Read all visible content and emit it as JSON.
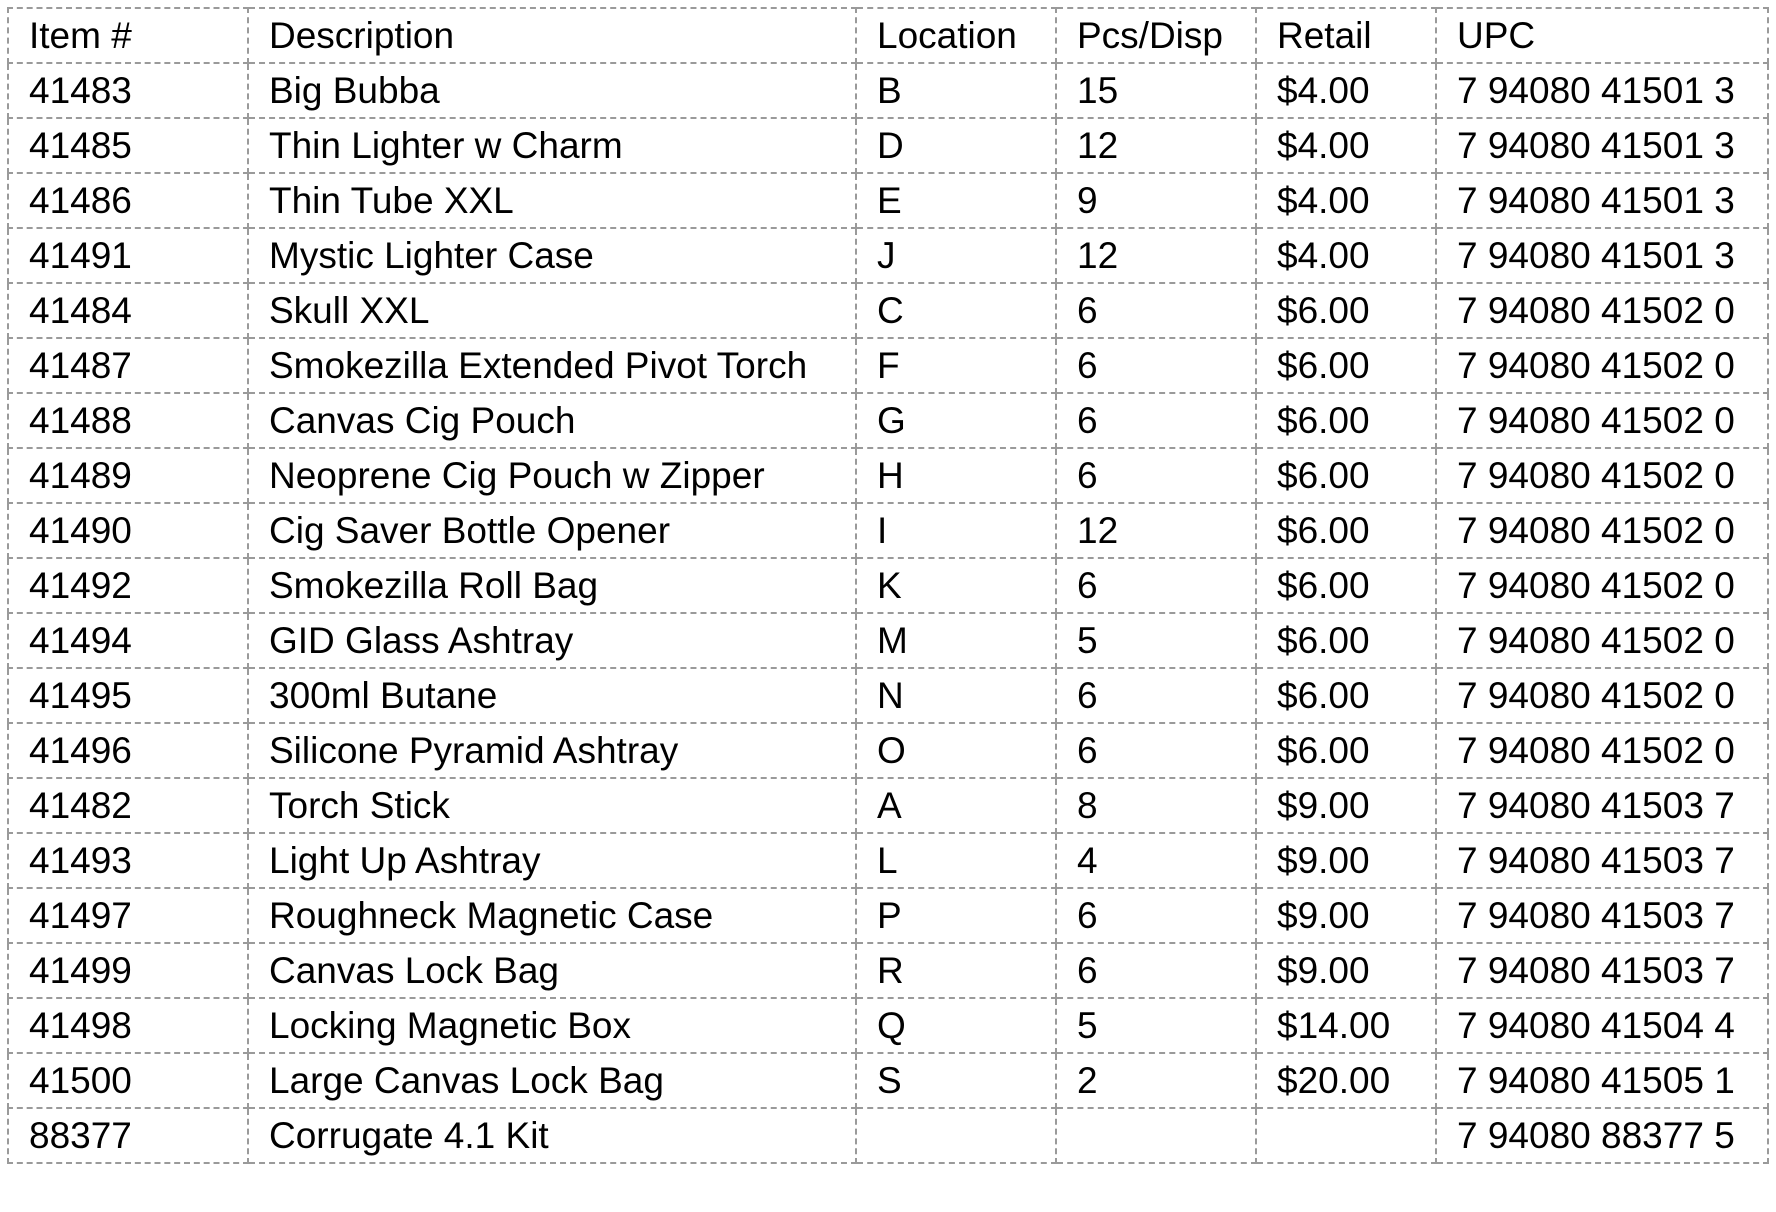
{
  "table": {
    "headers": [
      "Item #",
      "Description",
      "Location",
      "Pcs/Disp",
      "Retail",
      "UPC"
    ],
    "rows": [
      [
        "41483",
        "Big Bubba",
        "B",
        "15",
        "$4.00",
        "7 94080 41501 3"
      ],
      [
        "41485",
        "Thin Lighter w Charm",
        "D",
        "12",
        "$4.00",
        "7 94080 41501 3"
      ],
      [
        "41486",
        "Thin Tube XXL",
        "E",
        "9",
        "$4.00",
        "7 94080 41501 3"
      ],
      [
        "41491",
        "Mystic Lighter Case",
        "J",
        "12",
        "$4.00",
        "7 94080 41501 3"
      ],
      [
        "41484",
        "Skull XXL",
        "C",
        "6",
        "$6.00",
        "7 94080 41502 0"
      ],
      [
        "41487",
        "Smokezilla Extended Pivot Torch",
        "F",
        "6",
        "$6.00",
        "7 94080 41502 0"
      ],
      [
        "41488",
        "Canvas Cig Pouch",
        "G",
        "6",
        "$6.00",
        "7 94080 41502 0"
      ],
      [
        "41489",
        "Neoprene Cig Pouch w Zipper",
        "H",
        "6",
        "$6.00",
        "7 94080 41502 0"
      ],
      [
        "41490",
        "Cig Saver Bottle Opener",
        "I",
        "12",
        "$6.00",
        "7 94080 41502 0"
      ],
      [
        "41492",
        "Smokezilla Roll Bag",
        "K",
        "6",
        "$6.00",
        "7 94080 41502 0"
      ],
      [
        "41494",
        "GID Glass Ashtray",
        "M",
        "5",
        "$6.00",
        "7 94080 41502 0"
      ],
      [
        "41495",
        "300ml Butane",
        "N",
        "6",
        "$6.00",
        "7 94080 41502 0"
      ],
      [
        "41496",
        "Silicone Pyramid Ashtray",
        "O",
        "6",
        "$6.00",
        "7 94080 41502 0"
      ],
      [
        "41482",
        "Torch Stick",
        "A",
        "8",
        "$9.00",
        "7 94080 41503 7"
      ],
      [
        "41493",
        "Light Up Ashtray",
        "L",
        "4",
        "$9.00",
        "7 94080 41503 7"
      ],
      [
        "41497",
        "Roughneck Magnetic Case",
        "P",
        "6",
        "$9.00",
        "7 94080 41503 7"
      ],
      [
        "41499",
        "Canvas Lock Bag",
        "R",
        "6",
        "$9.00",
        "7 94080 41503 7"
      ],
      [
        "41498",
        "Locking Magnetic Box",
        "Q",
        "5",
        "$14.00",
        "7 94080 41504 4"
      ],
      [
        "41500",
        "Large Canvas Lock Bag",
        "S",
        "2",
        "$20.00",
        "7 94080 41505 1"
      ],
      [
        "88377",
        "Corrugate 4.1 Kit",
        "",
        "",
        "",
        "7 94080 88377 5"
      ]
    ]
  }
}
